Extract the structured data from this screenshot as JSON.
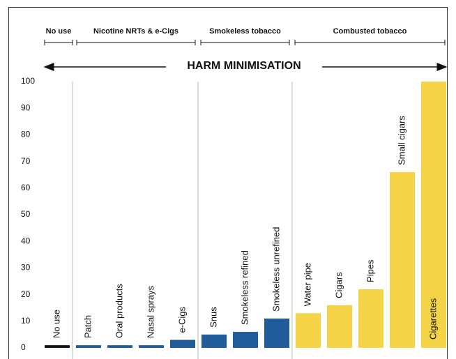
{
  "chart_data": {
    "type": "bar",
    "annotation": "HARM MINIMISATION",
    "groups": [
      "No use",
      "Nicotine NRTs & e-Cigs",
      "Smokeless tobacco",
      "Combusted tobacco"
    ],
    "categories": [
      "No use",
      "Patch",
      "Oral products",
      "Nasal sprays",
      "e-Cigs",
      "Snus",
      "Smokeless refined",
      "Smokeless unrefined",
      "Water pipe",
      "Cigars",
      "Pipes",
      "Small cigars",
      "Cigarettes"
    ],
    "values": [
      1,
      1,
      1,
      1,
      3,
      5,
      6,
      11,
      13,
      16,
      22,
      66,
      100
    ],
    "colors": [
      "#111111",
      "#1f5c99",
      "#1f5c99",
      "#1f5c99",
      "#1f5c99",
      "#1f5c99",
      "#1f5c99",
      "#1f5c99",
      "#f5d347",
      "#f5d347",
      "#f5d347",
      "#f5d347",
      "#f5d347"
    ],
    "ylim": [
      0,
      100
    ],
    "yticks": [
      0,
      10,
      20,
      30,
      40,
      50,
      60,
      70,
      80,
      90,
      100
    ],
    "grid": false
  }
}
